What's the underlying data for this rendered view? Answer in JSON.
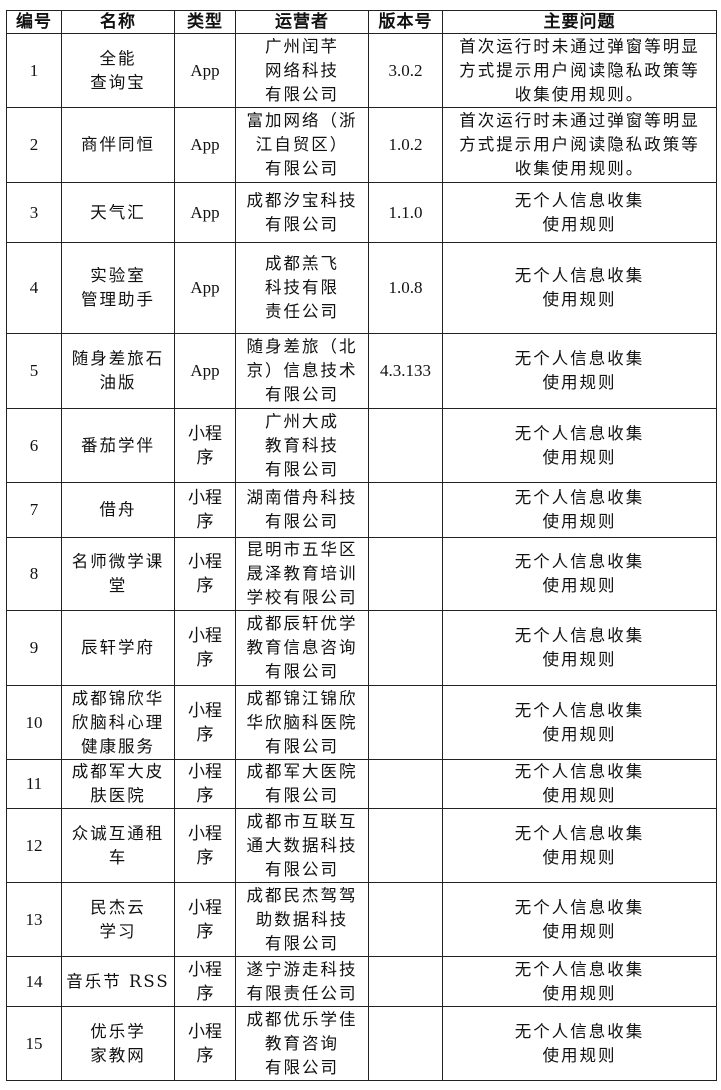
{
  "headers": [
    "编号",
    "名称",
    "类型",
    "运营者",
    "版本号",
    "主要问题"
  ],
  "rows": [
    {
      "no": "1",
      "name": "全能\n查询宝",
      "type": "App",
      "operator": "广州闰芊\n网络科技\n有限公司",
      "version": "3.0.2",
      "issue": "首次运行时未通过弹窗等明显\n方式提示用户阅读隐私政策等\n收集使用规则。"
    },
    {
      "no": "2",
      "name": "商伴同恒",
      "type": "App",
      "operator": "富加网络（浙\n江自贸区）\n有限公司",
      "version": "1.0.2",
      "issue": "首次运行时未通过弹窗等明显\n方式提示用户阅读隐私政策等\n收集使用规则。"
    },
    {
      "no": "3",
      "name": "天气汇",
      "type": "App",
      "operator": "成都汐宝科技\n有限公司",
      "version": "1.1.0",
      "issue": "无个人信息收集\n使用规则"
    },
    {
      "no": "4",
      "name": "实验室\n管理助手",
      "type": "App",
      "operator": "成都羔飞\n科技有限\n责任公司",
      "version": "1.0.8",
      "issue": "无个人信息收集\n使用规则"
    },
    {
      "no": "5",
      "name": "随身差旅石\n油版",
      "type": "App",
      "operator": "随身差旅（北\n京）信息技术\n有限公司",
      "version": "4.3.133",
      "issue": "无个人信息收集\n使用规则"
    },
    {
      "no": "6",
      "name": "番茄学伴",
      "type": "小程\n序",
      "operator": "广州大成\n教育科技\n有限公司",
      "version": "",
      "issue": "无个人信息收集\n使用规则"
    },
    {
      "no": "7",
      "name": "借舟",
      "type": "小程\n序",
      "operator": "湖南借舟科技\n有限公司",
      "version": "",
      "issue": "无个人信息收集\n使用规则"
    },
    {
      "no": "8",
      "name": "名师微学课\n堂",
      "type": "小程\n序",
      "operator": "昆明市五华区\n晟泽教育培训\n学校有限公司",
      "version": "",
      "issue": "无个人信息收集\n使用规则"
    },
    {
      "no": "9",
      "name": "辰轩学府",
      "type": "小程\n序",
      "operator": "成都辰轩优学\n教育信息咨询\n有限公司",
      "version": "",
      "issue": "无个人信息收集\n使用规则"
    },
    {
      "no": "10",
      "name": "成都锦欣华\n欣脑科心理\n健康服务",
      "type": "小程\n序",
      "operator": "成都锦江锦欣\n华欣脑科医院\n有限公司",
      "version": "",
      "issue": "无个人信息收集\n使用规则"
    },
    {
      "no": "11",
      "name": "成都军大皮\n肤医院",
      "type": "小程\n序",
      "operator": "成都军大医院\n有限公司",
      "version": "",
      "issue": "无个人信息收集\n使用规则"
    },
    {
      "no": "12",
      "name": "众诚互通租\n车",
      "type": "小程\n序",
      "operator": "成都市互联互\n通大数据科技\n有限公司",
      "version": "",
      "issue": "无个人信息收集\n使用规则"
    },
    {
      "no": "13",
      "name": "民杰云\n学习",
      "type": "小程\n序",
      "operator": "成都民杰驾驾\n助数据科技\n有限公司",
      "version": "",
      "issue": "无个人信息收集\n使用规则"
    },
    {
      "no": "14",
      "name": "音乐节 RSS",
      "type": "小程\n序",
      "operator": "遂宁游走科技\n有限责任公司",
      "version": "",
      "issue": "无个人信息收集\n使用规则"
    },
    {
      "no": "15",
      "name": "优乐学\n家教网",
      "type": "小程\n序",
      "operator": "成都优乐学佳\n教育咨询\n有限公司",
      "version": "",
      "issue": "无个人信息收集\n使用规则"
    }
  ]
}
